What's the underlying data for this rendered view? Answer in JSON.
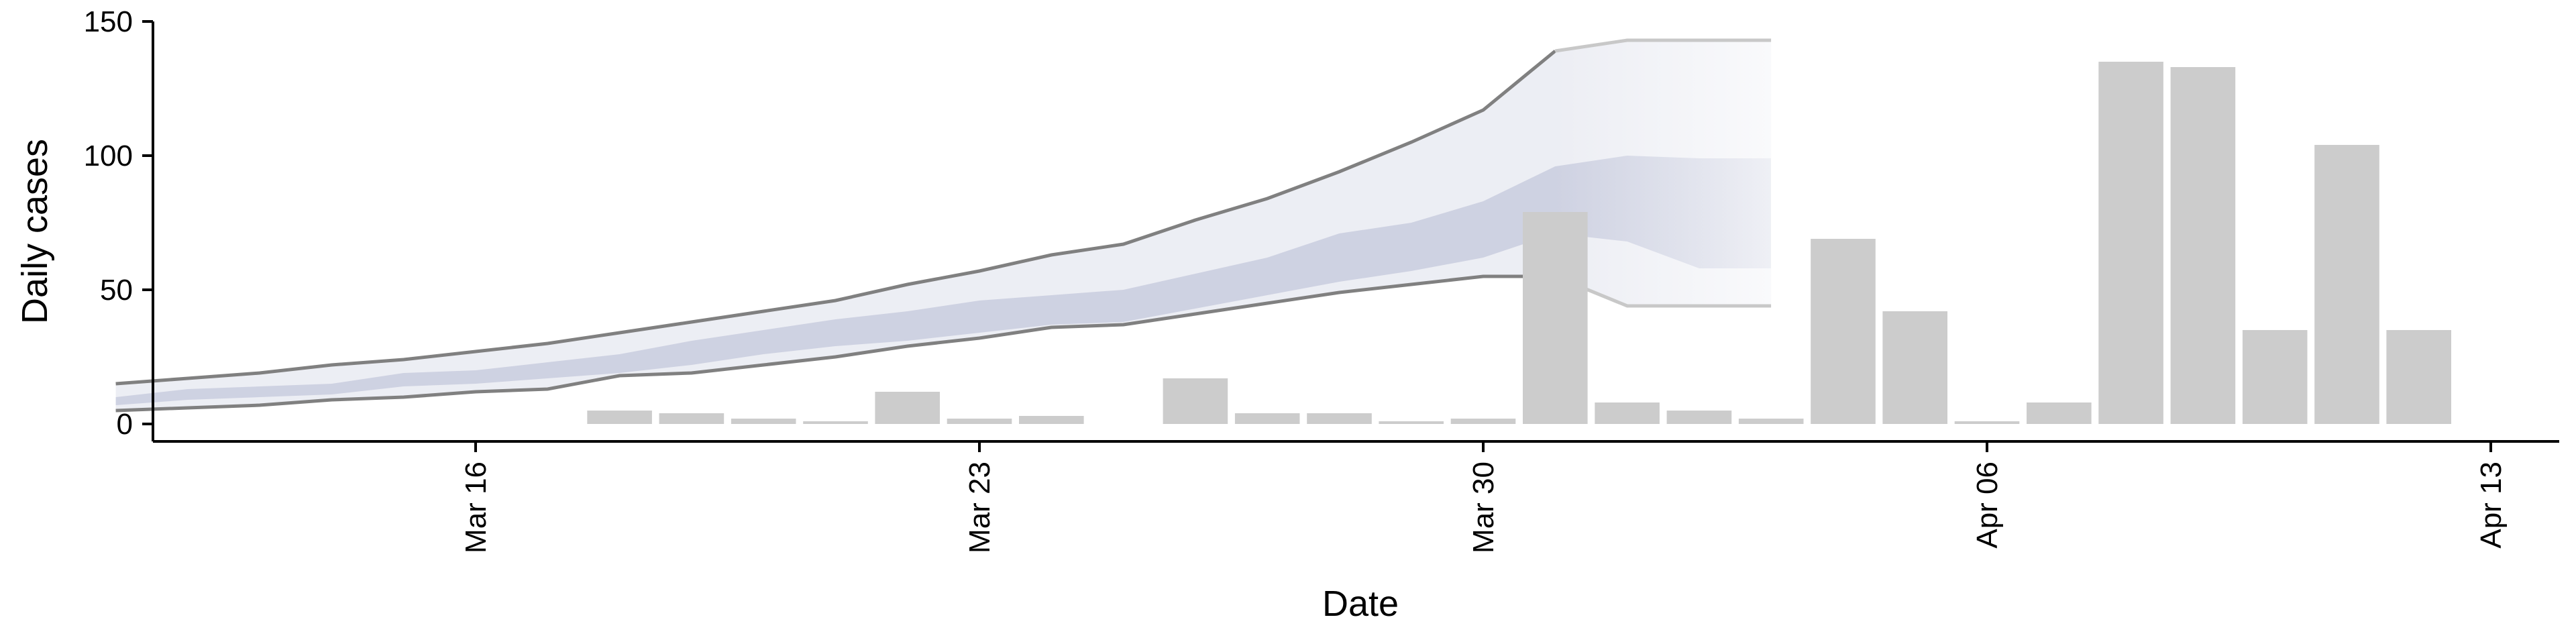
{
  "chart_data": {
    "type": "bar",
    "xlabel": "Date",
    "ylabel": "Daily cases",
    "ylim": [
      0,
      150
    ],
    "xlim": [
      "2020-03-09",
      "2020-04-14"
    ],
    "x_ticks": [
      {
        "date": "2020-03-16",
        "label": "Mar 16"
      },
      {
        "date": "2020-03-23",
        "label": "Mar 23"
      },
      {
        "date": "2020-03-30",
        "label": "Mar 30"
      },
      {
        "date": "2020-04-06",
        "label": "Apr 06"
      },
      {
        "date": "2020-04-13",
        "label": "Apr 13"
      }
    ],
    "y_ticks": [
      0,
      50,
      100,
      150
    ],
    "bar_color": "#cccccc",
    "bars": [
      {
        "date": "2020-03-18",
        "value": 5
      },
      {
        "date": "2020-03-19",
        "value": 4
      },
      {
        "date": "2020-03-20",
        "value": 2
      },
      {
        "date": "2020-03-21",
        "value": 1
      },
      {
        "date": "2020-03-22",
        "value": 12
      },
      {
        "date": "2020-03-23",
        "value": 2
      },
      {
        "date": "2020-03-24",
        "value": 3
      },
      {
        "date": "2020-03-26",
        "value": 17
      },
      {
        "date": "2020-03-27",
        "value": 4
      },
      {
        "date": "2020-03-28",
        "value": 4
      },
      {
        "date": "2020-03-29",
        "value": 1
      },
      {
        "date": "2020-03-30",
        "value": 2
      },
      {
        "date": "2020-03-31",
        "value": 79
      },
      {
        "date": "2020-04-01",
        "value": 8
      },
      {
        "date": "2020-04-02",
        "value": 5
      },
      {
        "date": "2020-04-03",
        "value": 2
      },
      {
        "date": "2020-04-04",
        "value": 69
      },
      {
        "date": "2020-04-05",
        "value": 42
      },
      {
        "date": "2020-04-06",
        "value": 1
      },
      {
        "date": "2020-04-07",
        "value": 8
      },
      {
        "date": "2020-04-08",
        "value": 135
      },
      {
        "date": "2020-04-09",
        "value": 133
      },
      {
        "date": "2020-04-10",
        "value": 35
      },
      {
        "date": "2020-04-11",
        "value": 104
      },
      {
        "date": "2020-04-12",
        "value": 35
      }
    ],
    "band_color": "#aab0cc",
    "bands": {
      "dates": [
        "2020-03-11",
        "2020-03-12",
        "2020-03-13",
        "2020-03-14",
        "2020-03-15",
        "2020-03-16",
        "2020-03-17",
        "2020-03-18",
        "2020-03-19",
        "2020-03-20",
        "2020-03-21",
        "2020-03-22",
        "2020-03-23",
        "2020-03-24",
        "2020-03-25",
        "2020-03-26",
        "2020-03-27",
        "2020-03-28",
        "2020-03-29",
        "2020-03-30",
        "2020-03-31",
        "2020-04-01",
        "2020-04-02",
        "2020-04-03"
      ],
      "outer_upper": [
        15,
        17,
        19,
        22,
        24,
        27,
        30,
        34,
        38,
        42,
        46,
        52,
        57,
        63,
        67,
        76,
        84,
        94,
        105,
        117,
        139,
        143,
        143,
        143
      ],
      "outer_lower": [
        5,
        6,
        7,
        9,
        10,
        12,
        13,
        18,
        19,
        22,
        25,
        29,
        32,
        36,
        37,
        41,
        45,
        49,
        52,
        55,
        55,
        44,
        44,
        44
      ],
      "inner_upper": [
        10,
        13,
        14,
        15,
        19,
        20,
        23,
        26,
        31,
        35,
        39,
        42,
        46,
        48,
        50,
        56,
        62,
        71,
        75,
        83,
        96,
        100,
        99,
        99
      ],
      "inner_lower": [
        7,
        9,
        10,
        11,
        14,
        15,
        17,
        19,
        22,
        26,
        29,
        31,
        34,
        37,
        38,
        43,
        48,
        53,
        57,
        62,
        71,
        68,
        58,
        58
      ],
      "fade_start": "2020-03-31",
      "end": "2020-04-03"
    }
  }
}
